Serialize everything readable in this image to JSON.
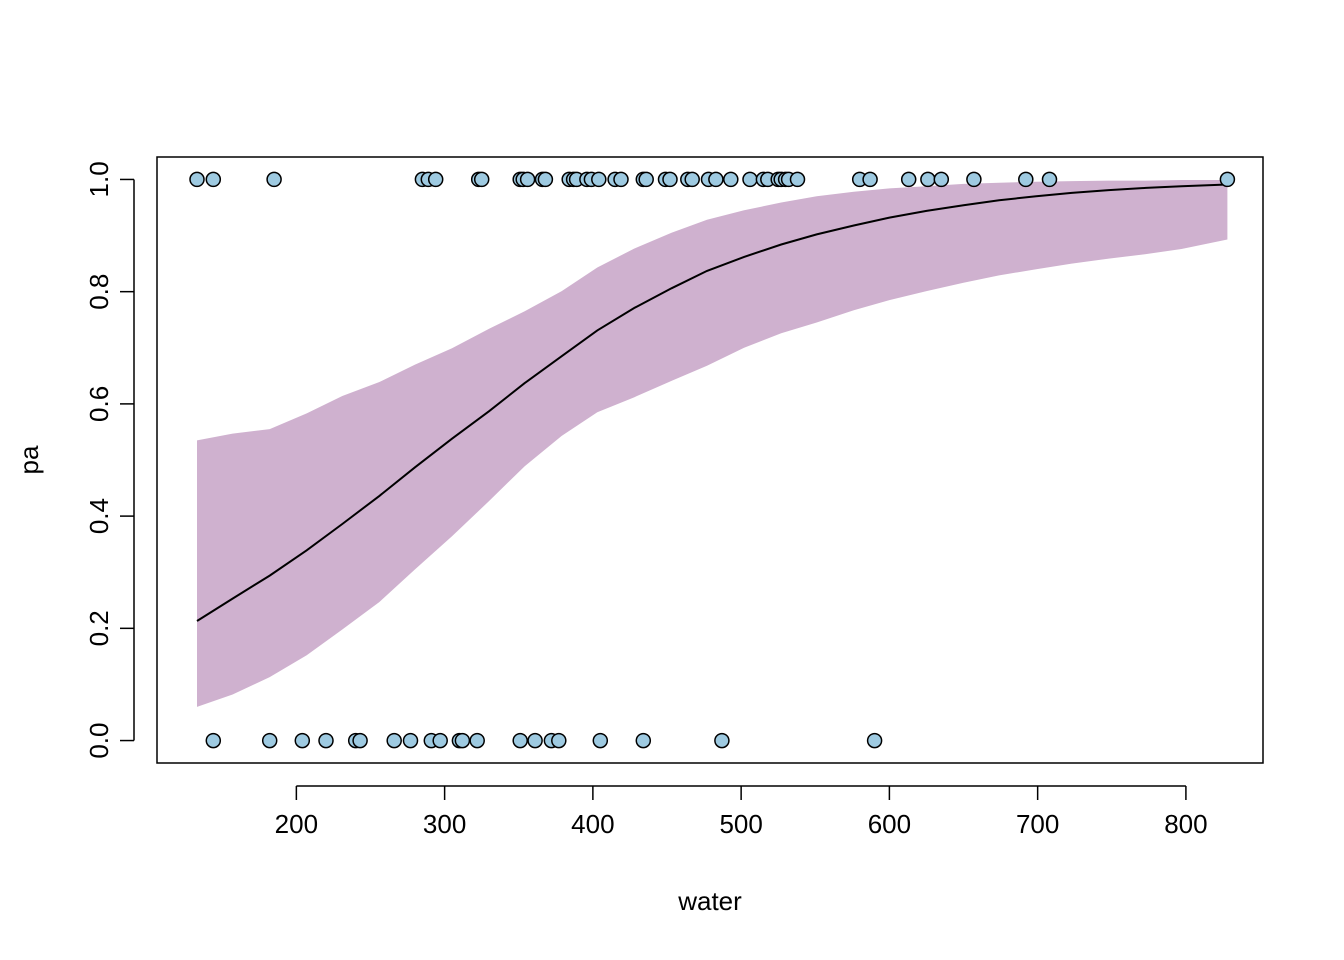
{
  "chart_data": {
    "type": "scatter",
    "title": "",
    "xlabel": "water",
    "ylabel": "pa",
    "xlim": [
      106,
      852
    ],
    "ylim": [
      -0.04,
      1.04
    ],
    "x_ticks": [
      200,
      300,
      400,
      500,
      600,
      700,
      800
    ],
    "y_ticks": [
      0.0,
      0.2,
      0.4,
      0.6,
      0.8,
      1.0
    ],
    "x_tick_labels": [
      "200",
      "300",
      "400",
      "500",
      "600",
      "700",
      "800"
    ],
    "y_tick_labels": [
      "0.0",
      "0.2",
      "0.4",
      "0.6",
      "0.8",
      "1.0"
    ],
    "grid": false,
    "legend": "none",
    "colors": {
      "points_fill": "#9ecae1",
      "points_stroke": "#000000",
      "band_fill": "#cfb1cf",
      "line": "#000000"
    },
    "points_y1": [
      133,
      144,
      185,
      285,
      289,
      294,
      323,
      325,
      351,
      353,
      356,
      366,
      368,
      384,
      387,
      389,
      396,
      399,
      404,
      415,
      419,
      434,
      436,
      449,
      452,
      464,
      467,
      478,
      483,
      493,
      506,
      515,
      518,
      525,
      527,
      530,
      532,
      538,
      580,
      587,
      613,
      626,
      635,
      657,
      692,
      708,
      828
    ],
    "points_y0": [
      144,
      182,
      204,
      220,
      240,
      243,
      266,
      277,
      291,
      297,
      310,
      312,
      322,
      351,
      361,
      372,
      377,
      405,
      434,
      487,
      590
    ],
    "fit": {
      "x": [
        133,
        157,
        182,
        207,
        231,
        256,
        280,
        305,
        330,
        354,
        379,
        403,
        428,
        453,
        477,
        502,
        527,
        551,
        576,
        600,
        625,
        650,
        674,
        699,
        723,
        748,
        773,
        797,
        828
      ],
      "y": [
        0.213,
        0.253,
        0.294,
        0.339,
        0.386,
        0.436,
        0.487,
        0.538,
        0.587,
        0.637,
        0.685,
        0.731,
        0.771,
        0.806,
        0.837,
        0.862,
        0.884,
        0.902,
        0.918,
        0.932,
        0.944,
        0.954,
        0.963,
        0.97,
        0.976,
        0.981,
        0.985,
        0.988,
        0.991
      ],
      "lower": [
        0.06,
        0.082,
        0.113,
        0.152,
        0.198,
        0.247,
        0.305,
        0.364,
        0.427,
        0.489,
        0.543,
        0.585,
        0.612,
        0.641,
        0.668,
        0.7,
        0.726,
        0.745,
        0.767,
        0.785,
        0.801,
        0.816,
        0.829,
        0.84,
        0.85,
        0.859,
        0.867,
        0.876,
        0.893
      ],
      "upper": [
        0.535,
        0.547,
        0.555,
        0.583,
        0.614,
        0.639,
        0.67,
        0.699,
        0.734,
        0.765,
        0.801,
        0.843,
        0.877,
        0.905,
        0.928,
        0.945,
        0.959,
        0.97,
        0.978,
        0.984,
        0.988,
        0.992,
        0.994,
        0.996,
        0.997,
        0.998,
        0.998,
        0.999,
        0.999
      ]
    }
  }
}
